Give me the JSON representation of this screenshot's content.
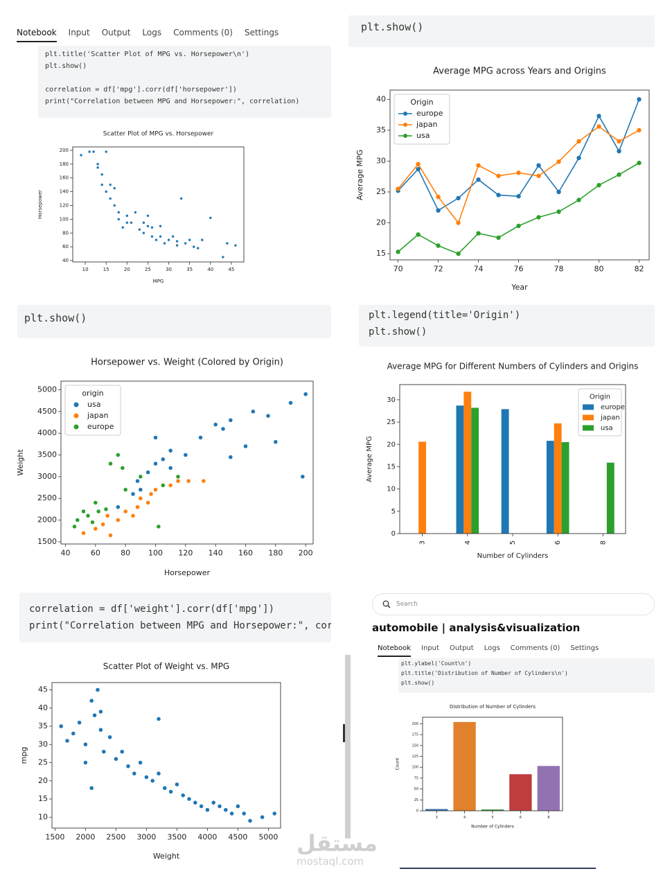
{
  "panels": [
    {
      "tabs": [
        "Notebook",
        "Input",
        "Output",
        "Logs",
        "Comments (0)",
        "Settings"
      ],
      "code": [
        "plt.title('Scatter Plot of MPG vs. Horsepower\\n')",
        "plt.show()",
        "correlation = df['mpg'].corr(df['horsepower'])",
        "print(\"Correlation between MPG and Horsepower:\", correlation)"
      ]
    },
    {
      "code": [
        "plt.show()"
      ]
    },
    {
      "code": [
        "plt.show()"
      ]
    },
    {
      "code": [
        "plt.legend(title='Origin')",
        "plt.show()"
      ]
    },
    {
      "code": [
        "correlation = df['weight'].corr(df['mpg'])",
        "print(\"Correlation between MPG and Horsepower:\", corr"
      ]
    },
    {
      "search": "Search",
      "title": "automobile | analysis&visualization",
      "tabs": [
        "Notebook",
        "Input",
        "Output",
        "Logs",
        "Comments (0)",
        "Settings"
      ],
      "code": [
        "plt.ylabel('Count\\n')",
        "plt.title('Distribution of Number of Cylinders\\n')",
        "plt.show()"
      ]
    }
  ],
  "watermark": {
    "arabic": "مستقل",
    "latin": "mostaql.com"
  },
  "chart_data": [
    {
      "type": "scatter",
      "title": "Scatter Plot of MPG vs. Horsepower",
      "xlabel": "MPG",
      "ylabel": "Horsepower",
      "color": "#1f77b4",
      "x": [
        9,
        11,
        12,
        13,
        14,
        15,
        14,
        13,
        16,
        15,
        16,
        17,
        18,
        18,
        19,
        20,
        21,
        22,
        23,
        24,
        25,
        26,
        26,
        27,
        28,
        29,
        30,
        31,
        32,
        33,
        34,
        35,
        36,
        37,
        38,
        40,
        43,
        44,
        46,
        24,
        20,
        17,
        28,
        32,
        25
      ],
      "values": [
        193,
        198,
        198,
        180,
        165,
        198,
        150,
        175,
        150,
        140,
        130,
        145,
        110,
        100,
        88,
        105,
        95,
        110,
        85,
        95,
        90,
        88,
        75,
        70,
        90,
        65,
        70,
        75,
        62,
        130,
        65,
        70,
        60,
        58,
        70,
        102,
        45,
        65,
        62,
        80,
        95,
        120,
        75,
        68,
        105
      ],
      "xlim": [
        7,
        48
      ],
      "xticks": [
        10,
        15,
        20,
        25,
        30,
        35,
        40,
        45
      ],
      "ylim": [
        38,
        205
      ],
      "yticks": [
        40,
        60,
        80,
        100,
        120,
        140,
        160,
        180,
        200
      ]
    },
    {
      "type": "line",
      "title": "Average MPG across Years and Origins",
      "xlabel": "Year",
      "ylabel": "Average MPG",
      "legend": "upper left",
      "legend_title": "Origin",
      "x": [
        70,
        71,
        72,
        73,
        74,
        75,
        76,
        77,
        78,
        79,
        80,
        81,
        82
      ],
      "series": [
        {
          "name": "europe",
          "color": "#1f77b4",
          "values": [
            25.2,
            28.7,
            22,
            24,
            27,
            24.5,
            24.3,
            29.3,
            25,
            30.5,
            37.3,
            31.6,
            40
          ]
        },
        {
          "name": "japan",
          "color": "#ff7f0e",
          "values": [
            25.5,
            29.5,
            24.2,
            20,
            29.3,
            27.6,
            28.1,
            27.6,
            29.9,
            33.2,
            35.6,
            33.2,
            35
          ]
        },
        {
          "name": "usa",
          "color": "#2ca02c",
          "values": [
            15.3,
            18.1,
            16.3,
            15,
            18.3,
            17.6,
            19.5,
            20.9,
            21.8,
            23.7,
            26.1,
            27.8,
            29.7
          ]
        }
      ],
      "xlim": [
        69.6,
        82.5
      ],
      "xticks": [
        70,
        72,
        74,
        76,
        78,
        80,
        82
      ],
      "ylim": [
        14,
        41.5
      ],
      "yticks": [
        15,
        20,
        25,
        30,
        35,
        40
      ]
    },
    {
      "type": "scatter",
      "title": "Horsepower vs. Weight (Colored by Origin)",
      "xlabel": "Horsepower",
      "ylabel": "Weight",
      "legend": "upper left",
      "legend_title": "origin",
      "series": [
        {
          "name": "usa",
          "color": "#1f77b4",
          "x": [
            150,
            165,
            190,
            200,
            130,
            140,
            110,
            100,
            95,
            88,
            105,
            85,
            75,
            90,
            175,
            180,
            198,
            120,
            145,
            160,
            100,
            110,
            150
          ],
          "values": [
            4300,
            4500,
            4700,
            4900,
            3900,
            4200,
            3600,
            3300,
            3100,
            2900,
            3400,
            2600,
            2300,
            2700,
            4400,
            3800,
            3000,
            3500,
            4100,
            3700,
            3900,
            3200,
            3450
          ]
        },
        {
          "name": "japan",
          "color": "#ff7f0e",
          "x": [
            52,
            60,
            65,
            68,
            70,
            75,
            80,
            85,
            88,
            90,
            95,
            97,
            100,
            110,
            115,
            122,
            132
          ],
          "values": [
            1700,
            1800,
            1900,
            2100,
            1650,
            2000,
            2200,
            2100,
            2300,
            2500,
            2400,
            2600,
            2700,
            2800,
            2900,
            2900,
            2900
          ]
        },
        {
          "name": "europe",
          "color": "#2ca02c",
          "x": [
            46,
            48,
            52,
            55,
            58,
            60,
            62,
            67,
            70,
            75,
            78,
            80,
            90,
            102,
            105,
            115
          ],
          "values": [
            1850,
            2000,
            2200,
            2100,
            1950,
            2400,
            2200,
            2250,
            3300,
            3500,
            3200,
            2700,
            3000,
            1850,
            2800,
            3000
          ]
        }
      ],
      "xlim": [
        37,
        205
      ],
      "xticks": [
        40,
        60,
        80,
        100,
        120,
        140,
        160,
        180,
        200
      ],
      "ylim": [
        1450,
        5200
      ],
      "yticks": [
        1500,
        2000,
        2500,
        3000,
        3500,
        4000,
        4500,
        5000
      ]
    },
    {
      "type": "bar",
      "title": "Average MPG for Different Numbers of Cylinders and Origins",
      "xlabel": "Number of Cylinders",
      "ylabel": "Average MPG",
      "legend": "upper right",
      "legend_title": "Origin",
      "categories": [
        "3",
        "4",
        "5",
        "6",
        "8"
      ],
      "series": [
        {
          "name": "europe",
          "color": "#1f77b4",
          "values": [
            null,
            28.7,
            27.9,
            20.8,
            null
          ]
        },
        {
          "name": "japan",
          "color": "#ff7f0e",
          "values": [
            20.6,
            31.8,
            null,
            24.7,
            null
          ]
        },
        {
          "name": "usa",
          "color": "#2ca02c",
          "values": [
            null,
            28.2,
            null,
            20.5,
            15.9
          ]
        }
      ],
      "ylim": [
        0,
        33.4
      ],
      "yticks": [
        0,
        5,
        10,
        15,
        20,
        25,
        30
      ]
    },
    {
      "type": "scatter",
      "title": "Scatter Plot of Weight vs. MPG",
      "xlabel": "Weight",
      "ylabel": "mpg",
      "color": "#1f77b4",
      "x": [
        1600,
        1700,
        1800,
        1900,
        2000,
        2100,
        2150,
        2200,
        2250,
        2300,
        2400,
        2500,
        2600,
        2700,
        2800,
        2900,
        3000,
        3100,
        3200,
        3300,
        3400,
        3500,
        3600,
        3700,
        3800,
        3900,
        4000,
        4100,
        4200,
        4300,
        4400,
        4500,
        4600,
        4700,
        4900,
        5100,
        2100,
        2250,
        3200,
        2000
      ],
      "values": [
        35,
        31,
        33,
        36,
        30,
        42,
        38,
        45,
        34,
        28,
        32,
        26,
        28,
        24,
        22,
        25,
        21,
        20,
        22,
        18,
        17,
        19,
        16,
        15,
        14,
        13,
        12,
        14,
        13,
        12,
        11,
        13,
        11,
        9,
        10,
        11,
        18,
        39,
        37,
        25
      ],
      "xlim": [
        1450,
        5200
      ],
      "xticks": [
        1500,
        2000,
        2500,
        3000,
        3500,
        4000,
        4500,
        5000
      ],
      "ylim": [
        7,
        47
      ],
      "yticks": [
        10,
        15,
        20,
        25,
        30,
        35,
        40,
        45
      ]
    },
    {
      "type": "bar",
      "title": "Distribution of Number of Cylinders",
      "xlabel": "Number of Cylinders",
      "ylabel": "Count",
      "categories": [
        "3",
        "4",
        "5",
        "6",
        "8"
      ],
      "values": [
        4,
        204,
        3,
        84,
        103
      ],
      "colors": [
        "#3a6ea5",
        "#e1812c",
        "#3a923a",
        "#c03d3e",
        "#9372b2"
      ],
      "ylim": [
        0,
        215
      ],
      "yticks": [
        0,
        25,
        50,
        75,
        100,
        125,
        150,
        175,
        200
      ]
    }
  ]
}
